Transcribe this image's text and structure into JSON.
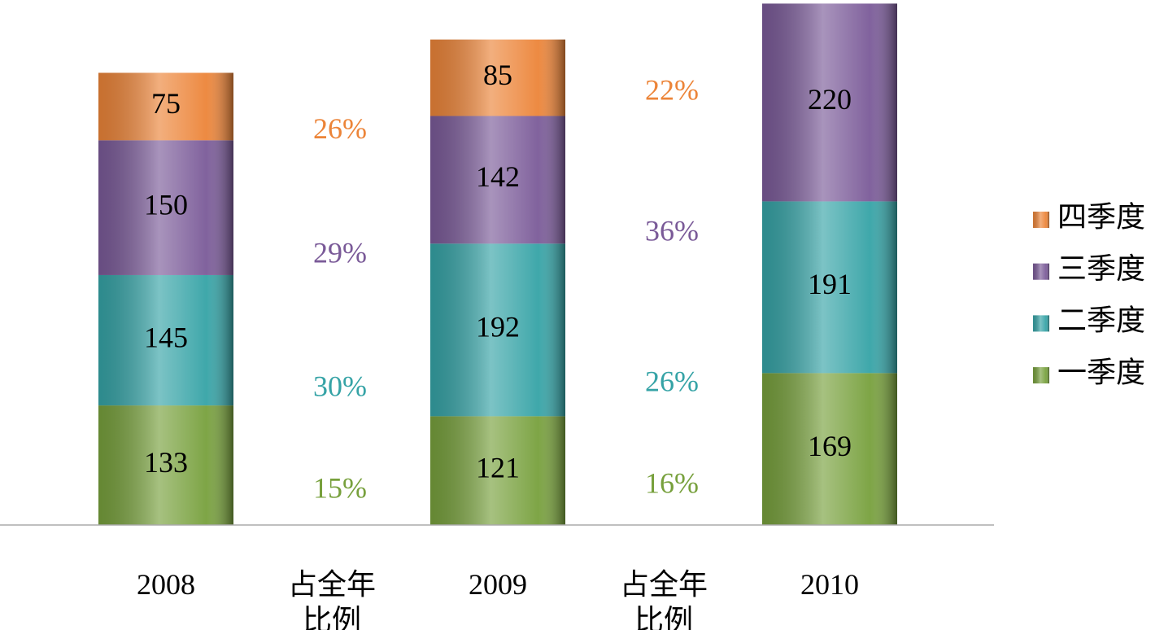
{
  "chart_data": {
    "type": "stacked_bar",
    "categories": [
      "2008",
      "占全年比例",
      "2009",
      "占全年比例",
      "2010"
    ],
    "ylim": [
      0,
      584
    ],
    "legend": "right",
    "series": [
      {
        "name": "一季度",
        "color": "#77a03c",
        "values": [
          133,
          null,
          121,
          null,
          169
        ],
        "shares": [
          null,
          15,
          null,
          16,
          null
        ],
        "share_labels": [
          null,
          "15%",
          null,
          "16%",
          null
        ]
      },
      {
        "name": "二季度",
        "color": "#35a3a6",
        "values": [
          145,
          null,
          192,
          null,
          191
        ],
        "shares": [
          null,
          30,
          null,
          26,
          null
        ],
        "share_labels": [
          null,
          "30%",
          null,
          "26%",
          null
        ]
      },
      {
        "name": "三季度",
        "color": "#7a5a98",
        "values": [
          150,
          null,
          142,
          null,
          220
        ],
        "shares": [
          null,
          29,
          null,
          36,
          null
        ],
        "share_labels": [
          null,
          "29%",
          null,
          "36%",
          null
        ]
      },
      {
        "name": "四季度",
        "color": "#ec8438",
        "values": [
          75,
          null,
          85,
          null,
          null
        ],
        "shares": [
          null,
          26,
          null,
          22,
          null
        ],
        "share_labels": [
          null,
          "26%",
          null,
          "22%",
          null
        ]
      }
    ]
  }
}
